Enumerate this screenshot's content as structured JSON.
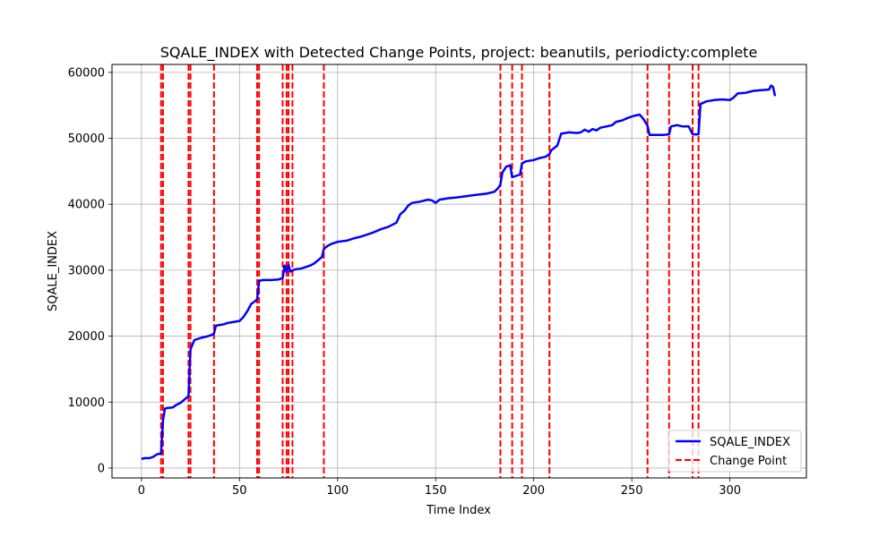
{
  "chart_data": {
    "type": "line",
    "title": "SQALE_INDEX with Detected Change Points, project: beanutils, periodicty:complete",
    "xlabel": "Time Index",
    "ylabel": "SQALE_INDEX",
    "xlim": [
      -15,
      339
    ],
    "ylim": [
      -1500,
      61200
    ],
    "xticks": [
      0,
      50,
      100,
      150,
      200,
      250,
      300
    ],
    "yticks": [
      0,
      10000,
      20000,
      30000,
      40000,
      50000,
      60000
    ],
    "grid": true,
    "legend_position": "lower-right",
    "series": [
      {
        "name": "SQALE_INDEX",
        "color": "#0000ff",
        "style": "solid",
        "points": [
          [
            0,
            1400
          ],
          [
            2,
            1500
          ],
          [
            4,
            1500
          ],
          [
            6,
            1700
          ],
          [
            8,
            2100
          ],
          [
            10,
            2200
          ],
          [
            11,
            7200
          ],
          [
            12,
            9000
          ],
          [
            13,
            9100
          ],
          [
            16,
            9200
          ],
          [
            18,
            9600
          ],
          [
            20,
            9900
          ],
          [
            22,
            10400
          ],
          [
            24,
            10900
          ],
          [
            25,
            18000
          ],
          [
            27,
            19400
          ],
          [
            29,
            19600
          ],
          [
            31,
            19800
          ],
          [
            34,
            20000
          ],
          [
            36,
            20200
          ],
          [
            37,
            20400
          ],
          [
            38,
            21600
          ],
          [
            40,
            21700
          ],
          [
            42,
            21800
          ],
          [
            44,
            22000
          ],
          [
            46,
            22100
          ],
          [
            48,
            22200
          ],
          [
            50,
            22300
          ],
          [
            52,
            22900
          ],
          [
            54,
            23800
          ],
          [
            56,
            24900
          ],
          [
            58,
            25300
          ],
          [
            59,
            25600
          ],
          [
            60,
            28400
          ],
          [
            62,
            28500
          ],
          [
            66,
            28500
          ],
          [
            70,
            28600
          ],
          [
            72,
            28800
          ],
          [
            73,
            30700
          ],
          [
            74,
            29700
          ],
          [
            75,
            30800
          ],
          [
            76,
            29800
          ],
          [
            78,
            30100
          ],
          [
            82,
            30300
          ],
          [
            86,
            30700
          ],
          [
            88,
            31000
          ],
          [
            90,
            31500
          ],
          [
            92,
            32000
          ],
          [
            93,
            33200
          ],
          [
            95,
            33700
          ],
          [
            97,
            34000
          ],
          [
            100,
            34300
          ],
          [
            105,
            34500
          ],
          [
            108,
            34800
          ],
          [
            112,
            35100
          ],
          [
            118,
            35700
          ],
          [
            122,
            36200
          ],
          [
            126,
            36600
          ],
          [
            130,
            37200
          ],
          [
            132,
            38500
          ],
          [
            134,
            39000
          ],
          [
            136,
            39800
          ],
          [
            138,
            40200
          ],
          [
            142,
            40400
          ],
          [
            146,
            40700
          ],
          [
            148,
            40600
          ],
          [
            150,
            40200
          ],
          [
            152,
            40700
          ],
          [
            156,
            40900
          ],
          [
            160,
            41000
          ],
          [
            165,
            41200
          ],
          [
            170,
            41400
          ],
          [
            176,
            41600
          ],
          [
            180,
            41900
          ],
          [
            182,
            42500
          ],
          [
            183,
            43000
          ],
          [
            184,
            44800
          ],
          [
            186,
            45700
          ],
          [
            188,
            45900
          ],
          [
            189,
            44100
          ],
          [
            191,
            44300
          ],
          [
            193,
            44500
          ],
          [
            194,
            46200
          ],
          [
            196,
            46500
          ],
          [
            200,
            46700
          ],
          [
            203,
            47000
          ],
          [
            206,
            47200
          ],
          [
            208,
            47600
          ],
          [
            209,
            48200
          ],
          [
            212,
            48900
          ],
          [
            214,
            50700
          ],
          [
            218,
            50900
          ],
          [
            222,
            50800
          ],
          [
            224,
            50900
          ],
          [
            226,
            51300
          ],
          [
            228,
            51000
          ],
          [
            230,
            51400
          ],
          [
            232,
            51200
          ],
          [
            234,
            51600
          ],
          [
            237,
            51800
          ],
          [
            240,
            52000
          ],
          [
            242,
            52500
          ],
          [
            245,
            52700
          ],
          [
            248,
            53100
          ],
          [
            251,
            53400
          ],
          [
            254,
            53600
          ],
          [
            256,
            52900
          ],
          [
            258,
            51900
          ],
          [
            259,
            50500
          ],
          [
            262,
            50500
          ],
          [
            266,
            50500
          ],
          [
            269,
            50600
          ],
          [
            270,
            51800
          ],
          [
            273,
            52000
          ],
          [
            276,
            51800
          ],
          [
            279,
            51800
          ],
          [
            281,
            50600
          ],
          [
            284,
            50600
          ],
          [
            285,
            55200
          ],
          [
            288,
            55600
          ],
          [
            292,
            55800
          ],
          [
            296,
            55900
          ],
          [
            300,
            55800
          ],
          [
            302,
            56200
          ],
          [
            304,
            56800
          ],
          [
            308,
            56900
          ],
          [
            312,
            57200
          ],
          [
            316,
            57300
          ],
          [
            320,
            57400
          ],
          [
            321,
            58000
          ],
          [
            322,
            57800
          ],
          [
            323,
            56400
          ]
        ]
      },
      {
        "name": "Change Point",
        "color": "#ff0000",
        "style": "dashed",
        "x": [
          10,
          11,
          24,
          25,
          37,
          59,
          60,
          72,
          74,
          75,
          77,
          93,
          183,
          189,
          194,
          208,
          258,
          269,
          281,
          284
        ]
      }
    ]
  }
}
